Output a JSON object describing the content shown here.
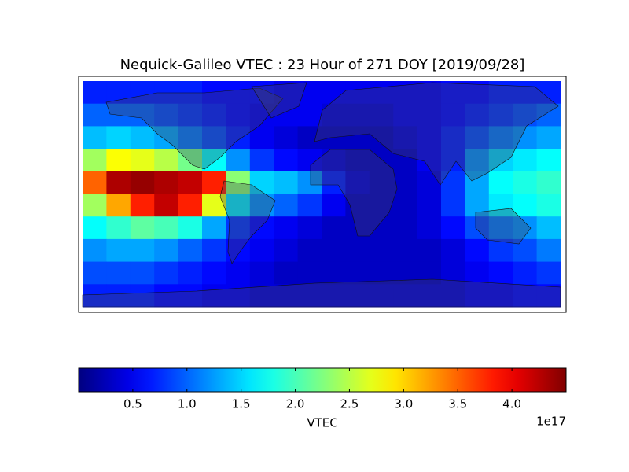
{
  "chart_data": {
    "type": "heatmap",
    "title": "Nequick-Galileo VTEC : 23 Hour of 271 DOY [2019/09/28]",
    "colormap": "jet",
    "values": [
      [
        0.7,
        0.7,
        0.7,
        0.7,
        0.7,
        0.6,
        0.6,
        0.6,
        0.5,
        0.5,
        0.5,
        0.5,
        0.5,
        0.5,
        0.5,
        0.6,
        0.6,
        0.7,
        0.7,
        0.7
      ],
      [
        1.0,
        1.0,
        1.0,
        0.9,
        0.8,
        0.7,
        0.6,
        0.5,
        0.5,
        0.5,
        0.4,
        0.4,
        0.4,
        0.5,
        0.5,
        0.6,
        0.7,
        0.8,
        0.9,
        1.0
      ],
      [
        1.4,
        1.5,
        1.4,
        1.3,
        1.1,
        0.9,
        0.7,
        0.5,
        0.4,
        0.3,
        0.3,
        0.3,
        0.3,
        0.4,
        0.5,
        0.7,
        0.9,
        1.1,
        1.2,
        1.3
      ],
      [
        2.4,
        2.8,
        2.7,
        2.5,
        2.2,
        1.7,
        1.2,
        0.8,
        0.6,
        0.5,
        0.4,
        0.3,
        0.3,
        0.3,
        0.5,
        0.7,
        1.2,
        1.5,
        1.6,
        1.7
      ],
      [
        3.5,
        4.3,
        4.4,
        4.3,
        4.2,
        3.8,
        2.3,
        1.5,
        1.4,
        1.2,
        0.7,
        0.4,
        0.3,
        0.3,
        0.4,
        0.8,
        1.3,
        1.7,
        1.8,
        1.9
      ],
      [
        2.4,
        3.2,
        3.8,
        4.2,
        3.8,
        2.7,
        1.6,
        1.2,
        1.0,
        0.8,
        0.5,
        0.3,
        0.3,
        0.3,
        0.4,
        0.8,
        1.3,
        1.6,
        1.7,
        1.8
      ],
      [
        1.7,
        1.9,
        2.1,
        2.0,
        1.8,
        1.3,
        0.8,
        0.6,
        0.5,
        0.4,
        0.3,
        0.3,
        0.3,
        0.3,
        0.4,
        0.6,
        0.9,
        1.1,
        1.2,
        1.4
      ],
      [
        1.2,
        1.3,
        1.3,
        1.2,
        1.0,
        0.8,
        0.6,
        0.5,
        0.4,
        0.3,
        0.3,
        0.3,
        0.3,
        0.3,
        0.3,
        0.4,
        0.6,
        0.8,
        0.9,
        1.1
      ],
      [
        0.9,
        0.9,
        0.9,
        0.8,
        0.7,
        0.6,
        0.5,
        0.4,
        0.3,
        0.3,
        0.3,
        0.3,
        0.3,
        0.3,
        0.3,
        0.4,
        0.5,
        0.6,
        0.7,
        0.8
      ],
      [
        0.7,
        0.7,
        0.7,
        0.6,
        0.6,
        0.5,
        0.5,
        0.4,
        0.4,
        0.4,
        0.4,
        0.4,
        0.4,
        0.4,
        0.4,
        0.4,
        0.5,
        0.5,
        0.6,
        0.6
      ]
    ],
    "zlim": [
      0,
      4.5
    ],
    "zticks": [
      0.5,
      {
        "value": 1,
        "label": "1.0"
      },
      1.5,
      {
        "value": 2,
        "label": "2.0"
      },
      2.5,
      {
        "value": 3,
        "label": "3.0"
      },
      3.5,
      {
        "value": 4,
        "label": "4.0"
      }
    ],
    "colorbar_label": "VTEC",
    "colorbar_offset_label": "1e17"
  }
}
